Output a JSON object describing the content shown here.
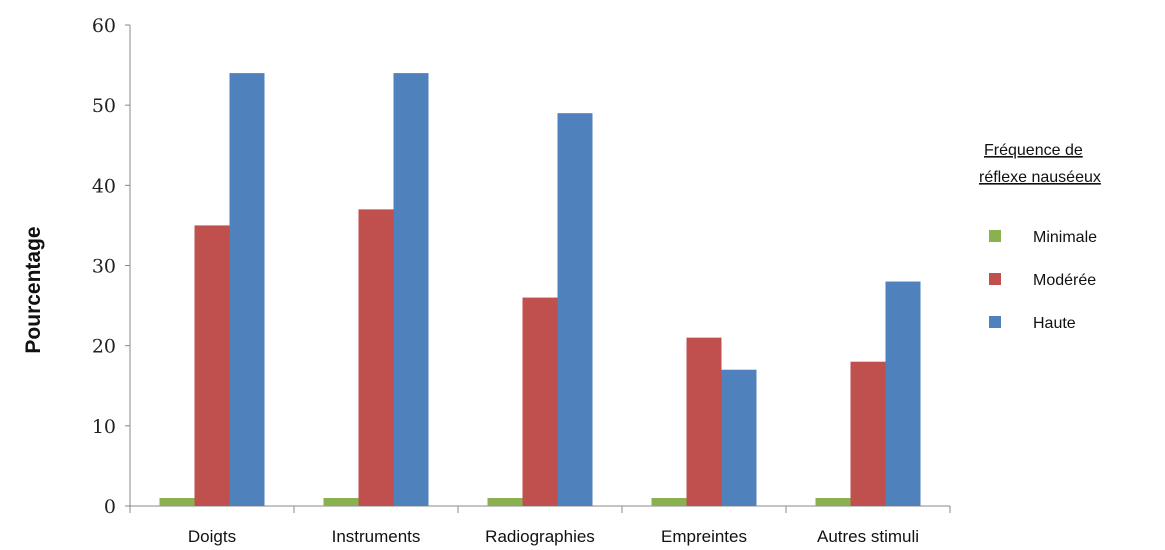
{
  "chart_data": {
    "type": "bar",
    "categories": [
      "Doigts",
      "Instruments",
      "Radiographies",
      "Empreintes",
      "Autres stimuli"
    ],
    "series": [
      {
        "name": "Minimale",
        "color": "#8BB050",
        "values": [
          1,
          1,
          1,
          1,
          1
        ]
      },
      {
        "name": "Modérée",
        "color": "#C0504D",
        "values": [
          35,
          37,
          26,
          21,
          18
        ]
      },
      {
        "name": "Haute",
        "color": "#4F81BD",
        "values": [
          54,
          54,
          49,
          17,
          28
        ]
      }
    ],
    "title": "",
    "xlabel": "",
    "ylabel": "Pourcentage",
    "ylim": [
      0,
      60
    ],
    "yticks": [
      "0",
      "10",
      "20",
      "30",
      "40",
      "50",
      "60"
    ],
    "grid": false,
    "legend": {
      "placement": "right",
      "title_line1": "Fréquence de",
      "title_line2": "réflexe nauséeux"
    }
  }
}
